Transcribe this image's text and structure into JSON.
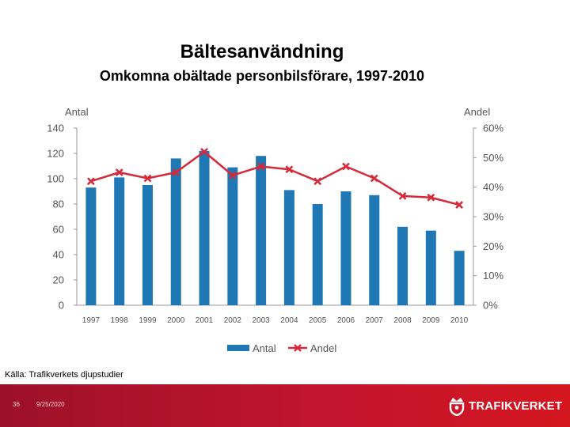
{
  "slide": {
    "title": "Bältesanvändning",
    "subtitle": "Omkomna obältade personbilsförare, 1997-2010",
    "source": "Källa: Trafikverkets djupstudier",
    "page_number": "36",
    "date": "9/25/2020",
    "logo_text": "TRAFIKVERKET"
  },
  "colors": {
    "bar": "#1f78b4",
    "line": "#d62a3a",
    "footer": "#c1142f"
  },
  "chart_data": {
    "type": "bar+line",
    "categories": [
      "1997",
      "1998",
      "1999",
      "2000",
      "2001",
      "2002",
      "2003",
      "2004",
      "2005",
      "2006",
      "2007",
      "2008",
      "2009",
      "2010"
    ],
    "series": [
      {
        "name": "Antal",
        "type": "bar",
        "axis": "left",
        "values": [
          93,
          101,
          95,
          116,
          122,
          109,
          118,
          91,
          80,
          90,
          87,
          62,
          59,
          43
        ]
      },
      {
        "name": "Andel",
        "type": "line",
        "axis": "right",
        "unit": "%",
        "values": [
          42,
          45,
          43,
          45,
          52,
          44,
          47,
          46,
          42,
          47,
          43,
          37,
          36.5,
          34
        ]
      }
    ],
    "left_axis": {
      "label": "Antal",
      "min": 0,
      "max": 140,
      "ticks": [
        0,
        20,
        40,
        60,
        80,
        100,
        120,
        140
      ]
    },
    "right_axis": {
      "label": "Andel",
      "min": 0,
      "max": 60,
      "ticks": [
        "0%",
        "10%",
        "20%",
        "30%",
        "40%",
        "50%",
        "60%"
      ]
    },
    "legend": [
      "Antal",
      "Andel"
    ],
    "legend_position": "bottom"
  }
}
